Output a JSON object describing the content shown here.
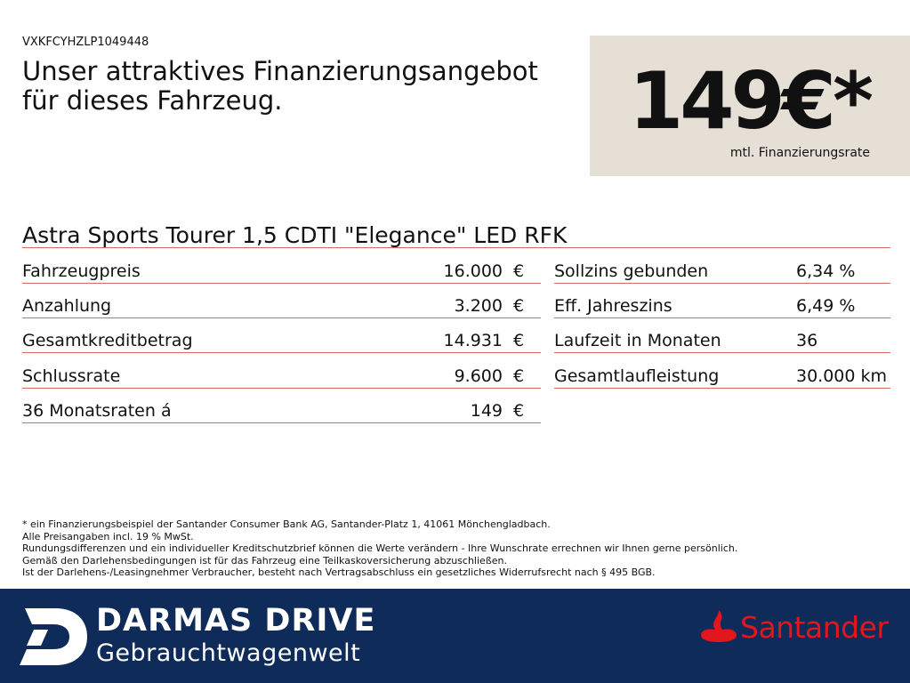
{
  "header": {
    "vin": "VXKFCYHZLP1049448",
    "headline": [
      "Unser attraktives Finanzierungsangebot",
      "für dieses Fahrzeug."
    ]
  },
  "price": {
    "amount": "149€*",
    "label": "mtl. Finanzierungsrate"
  },
  "model": "Astra Sports Tourer 1,5 CDTI \"Elegance\" LED RFK",
  "table": {
    "left": [
      {
        "label": "Fahrzeugpreis",
        "value": "16.000",
        "unit": "€"
      },
      {
        "label": "Anzahlung",
        "value": "3.200",
        "unit": "€"
      },
      {
        "label": "Gesamtkreditbetrag",
        "value": "14.931",
        "unit": "€"
      },
      {
        "label": "Schlussrate",
        "value": "9.600",
        "unit": "€"
      },
      {
        "label": "36 Monatsraten á",
        "value": "149",
        "unit": "€"
      }
    ],
    "right": [
      {
        "label": "Sollzins gebunden",
        "value": "6,34 %"
      },
      {
        "label": "Eff. Jahreszins",
        "value": "6,49 %"
      },
      {
        "label": "Laufzeit in Monaten",
        "value": "36"
      },
      {
        "label": "Gesamtlaufleistung",
        "value": "30.000 km"
      }
    ]
  },
  "footnotes": [
    "* ein Finanzierungsbeispiel der Santander Consumer Bank AG, Santander-Platz 1, 41061 Mönchengladbach.",
    "Alle Preisangaben incl. 19 % MwSt.",
    "Rundungsdifferenzen und ein individueller Kreditschutzbrief können die Werte verändern - Ihre Wunschrate errechnen wir Ihnen gerne persönlich.",
    "Gemäß den Darlehensbedingungen ist für das Fahrzeug eine Teilkaskoversicherung abzuschließen.",
    "Ist der Darlehens-/Leasingnehmer Verbraucher, besteht nach Vertragsabschluss ein gesetzliches Widerrufsrecht nach § 495 BGB."
  ],
  "footer": {
    "brand": "DARMAS DRIVE",
    "subbrand": "Gebrauchtwagenwelt",
    "bank": "Santander"
  }
}
